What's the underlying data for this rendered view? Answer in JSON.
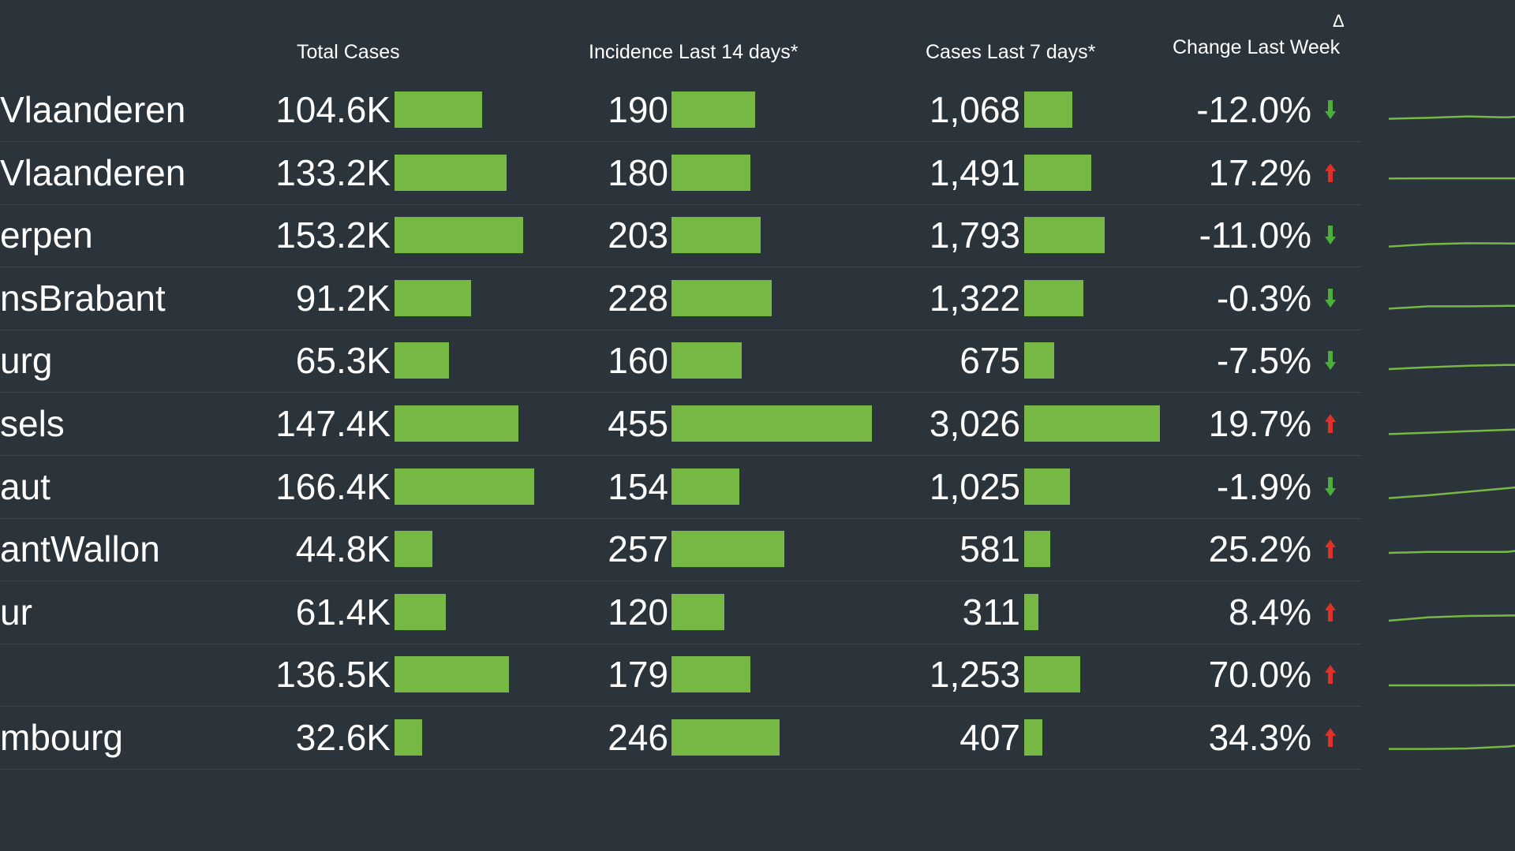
{
  "headers": {
    "delta": "Δ",
    "total_cases": "Total Cases",
    "incidence": "Incidence Last 14 days*",
    "cases_7": "Cases Last 7 days*",
    "change": "Change Last Week"
  },
  "colors": {
    "background": "#2b333b",
    "bar": "#77b844",
    "up": "#e0302a",
    "down": "#4caf3a",
    "spark": "#77b844"
  },
  "chart_data": {
    "type": "table",
    "columns": [
      "Total Cases",
      "Incidence Last 14 days*",
      "Cases Last 7 days*",
      "Change Last Week"
    ],
    "rows": [
      {
        "name": "Vlaanderen",
        "total_label": "104.6K",
        "total": 104.6,
        "incidence": 190,
        "cases7_label": "1,068",
        "cases7": 1068,
        "change_label": "-12.0%",
        "change": -12.0,
        "trend": [
          0.28,
          0.32,
          0.38,
          0.34,
          0.45
        ]
      },
      {
        "name": "Vlaanderen",
        "total_label": "133.2K",
        "total": 133.2,
        "incidence": 180,
        "cases7_label": "1,491",
        "cases7": 1491,
        "change_label": "17.2%",
        "change": 17.2,
        "trend": [
          0.42,
          0.43,
          0.43,
          0.43,
          0.43
        ]
      },
      {
        "name": "erpen",
        "total_label": "153.2K",
        "total": 153.2,
        "incidence": 203,
        "cases7_label": "1,793",
        "cases7": 1793,
        "change_label": "-11.0%",
        "change": -11.0,
        "trend": [
          0.18,
          0.28,
          0.32,
          0.31,
          0.32
        ]
      },
      {
        "name": "nsBrabant",
        "total_label": "91.2K",
        "total": 91.2,
        "incidence": 228,
        "cases7_label": "1,322",
        "cases7": 1322,
        "change_label": "-0.3%",
        "change": -0.3,
        "trend": [
          0.22,
          0.32,
          0.32,
          0.34,
          0.33
        ]
      },
      {
        "name": "urg",
        "total_label": "65.3K",
        "total": 65.3,
        "incidence": 160,
        "cases7_label": "675",
        "cases7": 675,
        "change_label": "-7.5%",
        "change": -7.5,
        "trend": [
          0.3,
          0.38,
          0.44,
          0.48,
          0.44
        ]
      },
      {
        "name": "sels",
        "total_label": "147.4K",
        "total": 147.4,
        "incidence": 455,
        "cases7_label": "3,026",
        "cases7": 3026,
        "change_label": "19.7%",
        "change": 19.7,
        "trend": [
          0.22,
          0.28,
          0.34,
          0.4,
          0.46
        ]
      },
      {
        "name": "aut",
        "total_label": "166.4K",
        "total": 166.4,
        "incidence": 154,
        "cases7_label": "1,025",
        "cases7": 1025,
        "change_label": "-1.9%",
        "change": -1.9,
        "trend": [
          0.18,
          0.3,
          0.45,
          0.6,
          0.75
        ]
      },
      {
        "name": "antWallon",
        "total_label": "44.8K",
        "total": 44.8,
        "incidence": 257,
        "cases7_label": "581",
        "cases7": 581,
        "change_label": "25.2%",
        "change": 25.2,
        "trend": [
          0.5,
          0.54,
          0.54,
          0.54,
          0.74
        ]
      },
      {
        "name": "ur",
        "total_label": "61.4K",
        "total": 61.4,
        "incidence": 120,
        "cases7_label": "311",
        "cases7": 311,
        "change_label": "8.4%",
        "change": 8.4,
        "trend": [
          0.3,
          0.44,
          0.5,
          0.52,
          0.52
        ]
      },
      {
        "name": "",
        "total_label": "136.5K",
        "total": 136.5,
        "incidence": 179,
        "cases7_label": "1,253",
        "cases7": 1253,
        "change_label": "70.0%",
        "change": 70.0,
        "trend": [
          0.2,
          0.2,
          0.2,
          0.21,
          0.22
        ]
      },
      {
        "name": "mbourg",
        "total_label": "32.6K",
        "total": 32.6,
        "incidence": 246,
        "cases7_label": "407",
        "cases7": 407,
        "change_label": "34.3%",
        "change": 34.3,
        "trend": [
          0.18,
          0.18,
          0.2,
          0.28,
          0.46
        ]
      }
    ]
  }
}
